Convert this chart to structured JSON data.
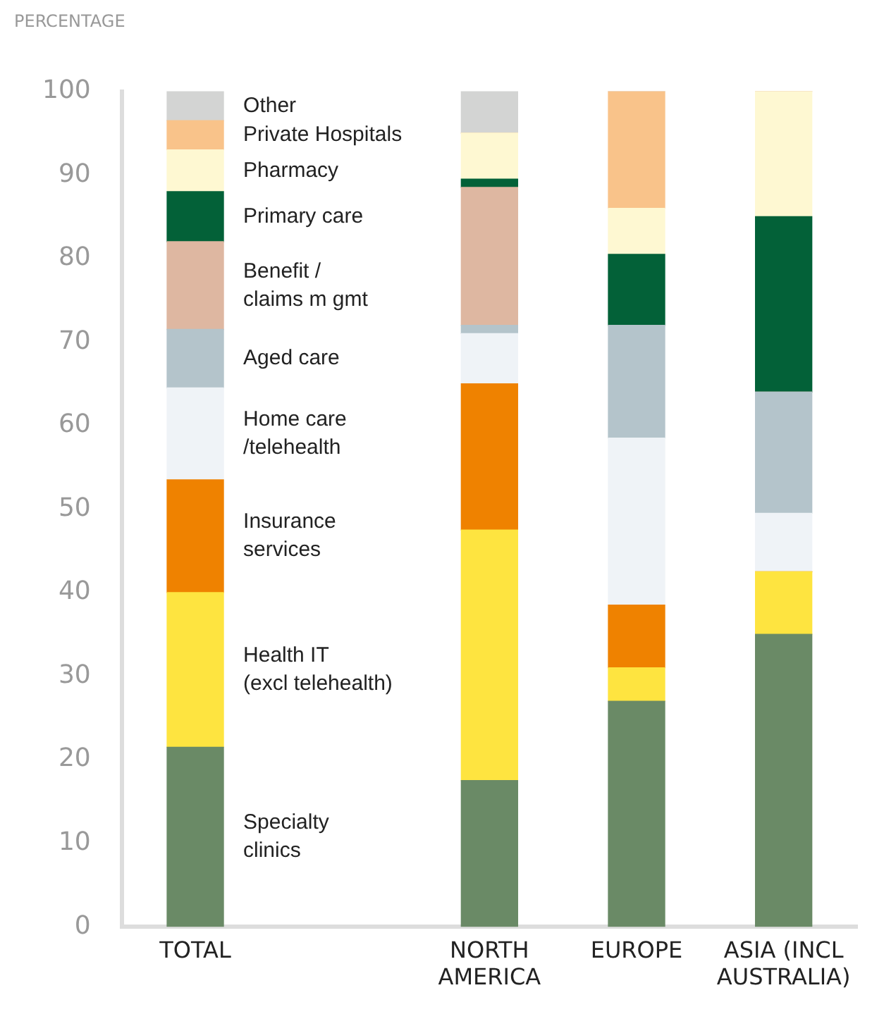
{
  "chart_data": {
    "type": "bar",
    "stacked": true,
    "ylabel": "PERCENTAGE",
    "categories": [
      "TOTAL",
      null,
      "NORTH\nAMERICA",
      "EUROPE",
      "ASIA (INCL\nAUSTRALIA)"
    ],
    "ylim": [
      0,
      100
    ],
    "yticks": [
      0,
      10,
      20,
      30,
      40,
      50,
      60,
      70,
      80,
      90,
      100
    ],
    "grid": false,
    "series": [
      {
        "name": "Specialty\nclinics",
        "color": "#6a8a66",
        "values": [
          21.5,
          null,
          17.5,
          27,
          35
        ]
      },
      {
        "name": "Health IT\n(excl telehealth)",
        "color": "#fee440",
        "values": [
          18.5,
          null,
          30,
          4,
          7.5
        ]
      },
      {
        "name": "Insurance\nservices",
        "color": "#ef8200",
        "values": [
          13.5,
          null,
          17.5,
          7.5,
          0
        ]
      },
      {
        "name": "Home care\n/telehealth",
        "color": "#eff3f7",
        "values": [
          11,
          null,
          6,
          20,
          7
        ]
      },
      {
        "name": "Aged care",
        "color": "#b4c4cb",
        "values": [
          7,
          null,
          1,
          13.5,
          14.5
        ]
      },
      {
        "name": "Benefit /\nclaims m gmt",
        "color": "#deb7a1",
        "values": [
          10.5,
          null,
          16.5,
          0,
          0
        ]
      },
      {
        "name": "Primary care",
        "color": "#036138",
        "values": [
          6,
          null,
          1,
          8.5,
          21
        ]
      },
      {
        "name": "Pharmacy",
        "color": "#fef8d2",
        "values": [
          5,
          null,
          5.5,
          5.5,
          15
        ]
      },
      {
        "name": "Private Hospitals",
        "color": "#f9c38a",
        "values": [
          3.5,
          null,
          0,
          14,
          0
        ]
      },
      {
        "name": "Other",
        "color": "#d3d4d3",
        "values": [
          3.5,
          null,
          5,
          0,
          0
        ]
      }
    ]
  }
}
